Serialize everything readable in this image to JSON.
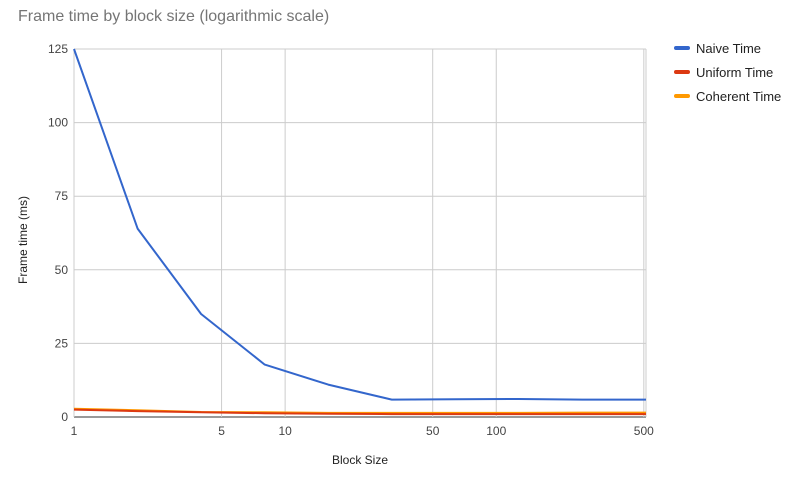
{
  "chart_data": {
    "type": "line",
    "title": "Frame time by block size (logarithmic scale)",
    "xlabel": "Block Size",
    "ylabel": "Frame time (ms)",
    "x_scale": "log",
    "xlim": [
      1,
      512
    ],
    "ylim": [
      0,
      125
    ],
    "x_ticks": [
      1,
      5,
      10,
      50,
      100,
      500
    ],
    "y_ticks": [
      0,
      25,
      50,
      75,
      100,
      125
    ],
    "grid": true,
    "legend_position": "right",
    "x": [
      1,
      2,
      4,
      8,
      16,
      32,
      64,
      128,
      256,
      512
    ],
    "series": [
      {
        "name": "Naive Time",
        "color": "#3366cc",
        "values": [
          125,
          64,
          35,
          17.8,
          11,
          5.9,
          6.0,
          6.1,
          5.9,
          5.9
        ]
      },
      {
        "name": "Uniform Time",
        "color": "#dc3912",
        "values": [
          2.5,
          2.0,
          1.6,
          1.3,
          1.1,
          1.0,
          1.0,
          1.0,
          1.0,
          1.0
        ]
      },
      {
        "name": "Coherent Time",
        "color": "#ff9900",
        "values": [
          2.8,
          2.3,
          1.7,
          1.6,
          1.4,
          1.4,
          1.4,
          1.4,
          1.5,
          1.5
        ]
      }
    ]
  }
}
